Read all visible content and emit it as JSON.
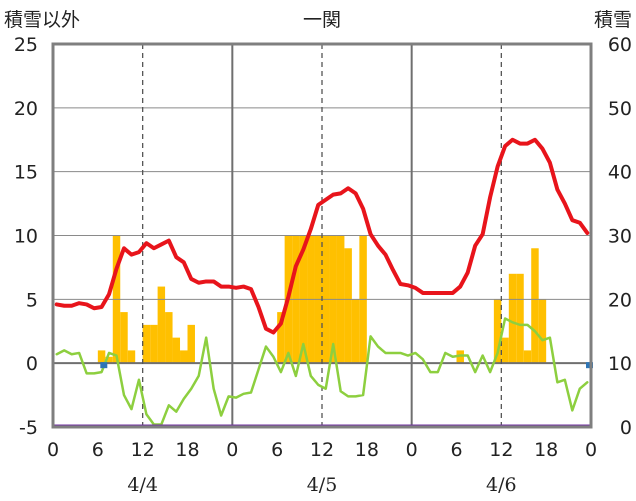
{
  "chart_data": {
    "type": "line+bar",
    "title": "一関",
    "left_axis_label": "積雪以外",
    "right_axis_label": "積雪",
    "left_ylim": [
      -5,
      25
    ],
    "left_ticks": [
      "25",
      "20",
      "15",
      "10",
      "5",
      "0",
      "-5"
    ],
    "right_ylim": [
      0,
      60
    ],
    "right_ticks": [
      "60",
      "50",
      "40",
      "30",
      "20",
      "10",
      "0"
    ],
    "x_hour_range": [
      0,
      72
    ],
    "x_tick_labels": [
      "0",
      "6",
      "12",
      "18",
      "0",
      "6",
      "12",
      "18",
      "0",
      "6",
      "12",
      "18",
      "0"
    ],
    "date_labels": [
      "4/4",
      "4/5",
      "4/6"
    ],
    "colors": {
      "temperature": "#e8141b",
      "dewpoint": "#8dcf3f",
      "precipitation": "#ffc000",
      "baseline": "#7030a0",
      "marker": "#2e75b6"
    },
    "series": [
      {
        "key": "temperature",
        "hours": [
          0,
          1,
          2,
          3,
          4,
          5,
          6,
          7,
          8,
          9,
          10,
          11,
          12,
          13,
          14,
          15,
          16,
          17,
          18,
          19,
          20,
          21,
          22,
          23,
          24,
          25,
          26,
          27,
          28,
          29,
          30,
          31,
          32,
          33,
          34,
          35,
          36,
          37,
          38,
          39,
          40,
          41,
          42,
          43,
          44,
          45,
          46,
          47,
          48,
          49,
          50,
          51,
          52,
          53,
          54,
          55,
          56,
          57,
          58,
          59,
          60,
          61,
          62,
          63,
          64,
          65,
          66,
          67,
          68,
          69,
          70,
          71,
          72
        ],
        "values": [
          4.6,
          4.5,
          4.5,
          4.7,
          4.6,
          4.3,
          4.4,
          5.4,
          7.4,
          9.0,
          8.5,
          8.7,
          9.4,
          9.0,
          9.3,
          9.6,
          8.3,
          7.9,
          6.6,
          6.3,
          6.4,
          6.4,
          6.0,
          6.0,
          5.9,
          6.0,
          5.8,
          4.4,
          2.7,
          2.4,
          3.1,
          5.2,
          7.6,
          8.9,
          10.5,
          12.4,
          12.8,
          13.2,
          13.3,
          13.7,
          13.3,
          12.1,
          10.1,
          9.2,
          8.5,
          7.3,
          6.2,
          6.1,
          5.9,
          5.5,
          5.5,
          5.5,
          5.5,
          5.5,
          6.0,
          7.1,
          9.2,
          10.1,
          13.0,
          15.4,
          17.0,
          17.5,
          17.2,
          17.2,
          17.5,
          16.8,
          15.7,
          13.6,
          12.5,
          11.2,
          11.0,
          10.2,
          null
        ]
      },
      {
        "key": "dewpoint",
        "hours": [
          0,
          1,
          2,
          3,
          4,
          5,
          6,
          7,
          8,
          9,
          10,
          11,
          12,
          13,
          14,
          15,
          16,
          17,
          18,
          19,
          20,
          21,
          22,
          23,
          24,
          25,
          26,
          27,
          28,
          29,
          30,
          31,
          32,
          33,
          34,
          35,
          36,
          37,
          38,
          39,
          40,
          41,
          42,
          43,
          44,
          45,
          46,
          47,
          48,
          49,
          50,
          51,
          52,
          53,
          54,
          55,
          56,
          57,
          58,
          59,
          60,
          61,
          62,
          63,
          64,
          65,
          66,
          67,
          68,
          69,
          70,
          71,
          72
        ],
        "values": [
          0.7,
          1.0,
          0.7,
          0.8,
          -0.8,
          -0.8,
          -0.7,
          0.8,
          0.6,
          -2.5,
          -3.6,
          -1.3,
          -4.0,
          -4.8,
          -4.8,
          -3.3,
          -3.8,
          -2.8,
          -2.0,
          -1.0,
          2.0,
          -2.0,
          -4.1,
          -2.6,
          -2.7,
          -2.4,
          -2.3,
          -0.5,
          1.3,
          0.5,
          -0.7,
          0.8,
          -1.0,
          1.5,
          -1.0,
          -1.7,
          -2.0,
          1.5,
          -2.2,
          -2.6,
          -2.6,
          -2.5,
          2.1,
          1.3,
          0.8,
          0.8,
          0.8,
          0.6,
          0.8,
          0.3,
          -0.7,
          -0.7,
          0.8,
          0.5,
          0.6,
          0.6,
          -0.7,
          0.6,
          -0.7,
          0.8,
          3.5,
          3.2,
          3.0,
          3.0,
          2.5,
          1.8,
          2.0,
          -1.5,
          -1.3,
          -3.7,
          -2.0,
          -1.5,
          null
        ]
      }
    ],
    "precipitation_bars": [
      {
        "hour": 6,
        "value": 1
      },
      {
        "hour": 7,
        "value": 0.5
      },
      {
        "hour": 8,
        "value": 10
      },
      {
        "hour": 9,
        "value": 4
      },
      {
        "hour": 10,
        "value": 1
      },
      {
        "hour": 12,
        "value": 3
      },
      {
        "hour": 13,
        "value": 3
      },
      {
        "hour": 14,
        "value": 6
      },
      {
        "hour": 15,
        "value": 4
      },
      {
        "hour": 16,
        "value": 2
      },
      {
        "hour": 17,
        "value": 1
      },
      {
        "hour": 18,
        "value": 3
      },
      {
        "hour": 30,
        "value": 4
      },
      {
        "hour": 31,
        "value": 10
      },
      {
        "hour": 32,
        "value": 10
      },
      {
        "hour": 33,
        "value": 10
      },
      {
        "hour": 34,
        "value": 10
      },
      {
        "hour": 35,
        "value": 10
      },
      {
        "hour": 36,
        "value": 10
      },
      {
        "hour": 37,
        "value": 10
      },
      {
        "hour": 38,
        "value": 10
      },
      {
        "hour": 39,
        "value": 9
      },
      {
        "hour": 40,
        "value": 5
      },
      {
        "hour": 41,
        "value": 10
      },
      {
        "hour": 54,
        "value": 1
      },
      {
        "hour": 59,
        "value": 5
      },
      {
        "hour": 60,
        "value": 2
      },
      {
        "hour": 61,
        "value": 7
      },
      {
        "hour": 62,
        "value": 7
      },
      {
        "hour": 63,
        "value": 1
      },
      {
        "hour": 64,
        "value": 9
      },
      {
        "hour": 65,
        "value": 5
      }
    ],
    "snow_depth_baseline": 0,
    "markers": [
      {
        "hour": 7,
        "value": 0
      },
      {
        "hour": 72,
        "value": 0
      }
    ]
  }
}
